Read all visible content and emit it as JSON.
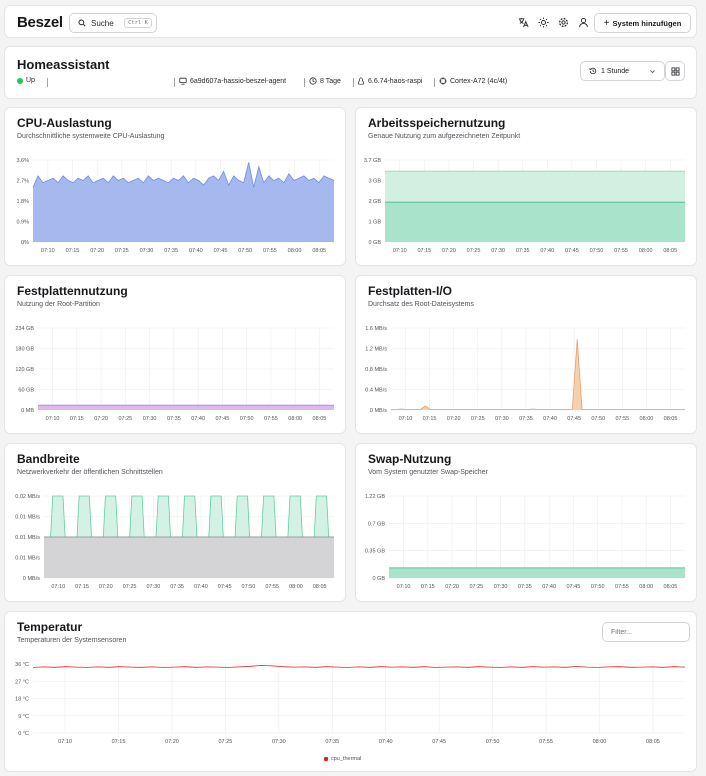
{
  "navbar": {
    "logo": "Beszel",
    "search_label": "Suche",
    "search_kbd": "Ctrl K",
    "add_system_label": "System hinzufügen",
    "icons": [
      "translate-icon",
      "sun-icon",
      "gear-icon",
      "user-icon"
    ]
  },
  "system": {
    "name": "Homeassistant",
    "status": "Up",
    "status_color": "#22c55e",
    "hostname": "6a9d607a-hassio-beszel-agent",
    "uptime": "8 Tage",
    "kernel": "6.6.74-haos-raspi",
    "cpu": "Cortex-A72 (4c/4t)",
    "time_range": "1 Stunde"
  },
  "time_ticks": [
    "07:10",
    "07:15",
    "07:20",
    "07:25",
    "07:30",
    "07:35",
    "07:40",
    "07:45",
    "07:50",
    "07:55",
    "08:00",
    "08:05"
  ],
  "cards": {
    "cpu": {
      "title": "CPU-Auslastung",
      "subtitle": "Durchschnittliche systemweite CPU-Auslastung"
    },
    "memory": {
      "title": "Arbeitsspeichernutzung",
      "subtitle": "Genaue Nutzung zum aufgezeichneten Zeitpunkt"
    },
    "disk": {
      "title": "Festplattennutzung",
      "subtitle": "Nutzung der Root-Partition"
    },
    "diskio": {
      "title": "Festplatten-I/O",
      "subtitle": "Durchsatz des Root-Dateisystems"
    },
    "bandwidth": {
      "title": "Bandbreite",
      "subtitle": "Netzwerkverkehr der öffentlichen Schnittstellen"
    },
    "swap": {
      "title": "Swap-Nutzung",
      "subtitle": "Vom System genutzter Swap-Speicher"
    },
    "temp": {
      "title": "Temperatur",
      "subtitle": "Temperaturen der Systemsensoren",
      "filter_placeholder": "Filter...",
      "legend": "cpu_thermal"
    }
  },
  "chart_data": [
    {
      "id": "cpu",
      "type": "area",
      "yticks": [
        "0%",
        "0.9%",
        "1.8%",
        "2.7%",
        "3.6%"
      ],
      "ylim": [
        0,
        3.6
      ],
      "color": "#a6b9ef",
      "stroke": "#6f8ee0",
      "values": [
        2.4,
        2.9,
        2.6,
        2.7,
        2.8,
        2.6,
        2.9,
        2.7,
        2.6,
        2.8,
        2.7,
        2.9,
        2.6,
        2.7,
        2.8,
        2.6,
        2.9,
        2.7,
        2.8,
        2.6,
        2.7,
        2.8,
        2.6,
        2.9,
        2.7,
        2.8,
        2.7,
        2.6,
        2.8,
        2.7,
        2.9,
        2.6,
        2.8,
        2.7,
        2.5,
        2.8,
        2.9,
        2.7,
        3.1,
        2.5,
        2.9,
        2.7,
        2.6,
        3.5,
        2.4,
        3.3,
        2.6,
        2.9,
        2.7,
        2.8,
        2.6,
        3.0,
        2.7,
        2.8,
        2.9,
        2.7,
        2.8,
        2.6,
        2.9,
        2.8,
        2.7
      ]
    },
    {
      "id": "memory",
      "type": "area",
      "yticks": [
        "0 GB",
        "1 GB",
        "2 GB",
        "3 GB",
        "3.7 GB"
      ],
      "ylim": [
        0,
        3.7
      ],
      "series": [
        {
          "value": 3.2,
          "color": "#d1f0e2",
          "stroke": "#7fd8b0"
        },
        {
          "value": 1.8,
          "color": "#a9e3cc",
          "stroke": "#3cae7f"
        }
      ]
    },
    {
      "id": "disk",
      "type": "area",
      "yticks": [
        "0 MB",
        "60 GB",
        "120 GB",
        "180 GB",
        "234 GB"
      ],
      "ylim": [
        0,
        234
      ],
      "value": 14,
      "color": "#ddb8ef",
      "stroke": "#b873d9"
    },
    {
      "id": "diskio",
      "type": "area",
      "yticks": [
        "0 MB/s",
        "0.4 MB/s",
        "0.8 MB/s",
        "1.2 MB/s",
        "1.6 MB/s"
      ],
      "ylim": [
        0,
        1.6
      ],
      "color": "#f6cfae",
      "stroke": "#e9a06c",
      "values": [
        0.01,
        0.01,
        0.02,
        0.01,
        0.01,
        0.01,
        0.01,
        0.08,
        0.01,
        0.01,
        0.01,
        0.01,
        0.01,
        0.01,
        0.01,
        0.01,
        0.01,
        0.01,
        0.01,
        0.01,
        0.01,
        0.01,
        0.01,
        0.01,
        0.01,
        0.01,
        0.01,
        0.01,
        0.01,
        0.02,
        0.01,
        0.01,
        0.01,
        0.01,
        0.01,
        0.01,
        0.01,
        0.01,
        1.38,
        0.01,
        0.01,
        0.01,
        0.01,
        0.01,
        0.01,
        0.01,
        0.01,
        0.01,
        0.01,
        0.01,
        0.01,
        0.01,
        0.01,
        0.01,
        0.01,
        0.01,
        0.01,
        0.01,
        0.01,
        0.01,
        0.01
      ]
    },
    {
      "id": "bandwidth",
      "type": "area",
      "yticks": [
        "0 MB/s",
        "0.01 MB/s",
        "0.01 MB/s",
        "0.01 MB/s",
        "0.02 MB/s"
      ],
      "ylim": [
        0,
        0.02
      ],
      "base_value": 0.01,
      "base_color": "#d4d4d6",
      "base_stroke": "#8a8a8f",
      "peak_value": 0.02,
      "peak_color": "#d3f1e4",
      "peak_stroke": "#63cfa1"
    },
    {
      "id": "swap",
      "type": "area",
      "yticks": [
        "0 GB",
        "0.35 GB",
        "0.7 GB",
        "1.22 GB"
      ],
      "ylim": [
        0,
        1.22
      ],
      "value": 0.15,
      "color": "#a9e3cc",
      "stroke": "#3cae7f"
    },
    {
      "id": "temp",
      "type": "line",
      "yticks": [
        "0 °C",
        "9 °C",
        "18 °C",
        "27 °C",
        "36 °C"
      ],
      "ylim": [
        0,
        36
      ],
      "color": "#dc2626",
      "values": [
        34.2,
        34.5,
        34.3,
        34.6,
        34.4,
        34.2,
        34.5,
        34.3,
        34.6,
        34.4,
        34.3,
        34.5,
        34.2,
        34.4,
        34.6,
        34.3,
        34.5,
        34.4,
        34.2,
        34.5,
        34.8,
        35.2,
        35.0,
        34.6,
        34.4,
        34.5,
        34.3,
        34.6,
        34.4,
        34.2,
        34.5,
        34.3,
        34.6,
        34.4,
        34.5,
        34.3,
        34.6,
        34.2,
        34.4,
        34.5,
        34.3,
        34.6,
        34.4,
        34.2,
        34.5,
        34.3,
        34.6,
        34.4,
        34.5,
        34.3,
        34.7,
        34.4,
        34.2,
        34.5,
        34.6,
        34.3,
        34.4,
        34.5,
        34.3,
        34.6,
        34.4
      ]
    }
  ]
}
